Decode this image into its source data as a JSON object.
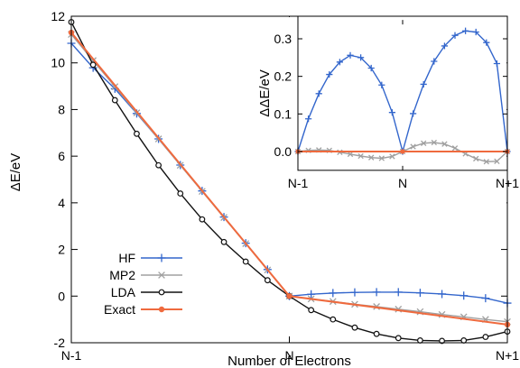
{
  "colors": {
    "HF": "#3366cc",
    "MP2": "#a0a0a0",
    "LDA": "#111111",
    "Exact": "#ef6a3e"
  },
  "chart_data": [
    {
      "type": "line",
      "title": "",
      "xlabel": "Number of Electrons",
      "ylabel": "ΔE/eV",
      "xlim": [
        0,
        2
      ],
      "ylim": [
        -2,
        12
      ],
      "x_ticks": [
        {
          "value": 0,
          "label": "N-1"
        },
        {
          "value": 1,
          "label": "N"
        },
        {
          "value": 2,
          "label": "N+1"
        }
      ],
      "y_ticks": [
        {
          "value": -2,
          "label": "-2"
        },
        {
          "value": 0,
          "label": "0"
        },
        {
          "value": 2,
          "label": "2"
        },
        {
          "value": 4,
          "label": "4"
        },
        {
          "value": 6,
          "label": "6"
        },
        {
          "value": 8,
          "label": "8"
        },
        {
          "value": 10,
          "label": "10"
        },
        {
          "value": 12,
          "label": "12"
        }
      ],
      "grid": false,
      "legend": {
        "position": "bottom-left"
      },
      "x": [
        0,
        0.1,
        0.2,
        0.3,
        0.4,
        0.5,
        0.6,
        0.7,
        0.8,
        0.9,
        1.0,
        1.1,
        1.2,
        1.3,
        1.4,
        1.5,
        1.6,
        1.7,
        1.8,
        1.9,
        2.0
      ],
      "series": [
        {
          "name": "HF",
          "marker": "plus",
          "values": [
            10.84,
            9.79,
            8.89,
            7.83,
            6.74,
            5.62,
            4.51,
            3.39,
            2.27,
            1.14,
            0.0,
            0.08,
            0.13,
            0.16,
            0.17,
            0.17,
            0.14,
            0.09,
            0.02,
            -0.09,
            -0.3
          ]
        },
        {
          "name": "MP2",
          "marker": "x",
          "values": [
            11.22,
            10.1,
            8.98,
            7.86,
            6.74,
            5.61,
            4.49,
            3.37,
            2.25,
            1.12,
            0.0,
            -0.12,
            -0.23,
            -0.35,
            -0.45,
            -0.56,
            -0.67,
            -0.79,
            -0.89,
            -1.0,
            -1.1
          ]
        },
        {
          "name": "LDA",
          "marker": "circle",
          "values": [
            11.75,
            9.92,
            8.4,
            6.96,
            5.61,
            4.4,
            3.29,
            2.32,
            1.48,
            0.68,
            0.0,
            -0.6,
            -1.0,
            -1.35,
            -1.62,
            -1.8,
            -1.9,
            -1.92,
            -1.9,
            -1.75,
            -1.52
          ]
        },
        {
          "name": "Exact",
          "marker": "dot",
          "values": [
            11.3,
            null,
            null,
            null,
            null,
            null,
            null,
            null,
            null,
            null,
            0.0,
            null,
            null,
            null,
            null,
            null,
            null,
            null,
            null,
            null,
            -1.22
          ]
        }
      ]
    },
    {
      "type": "line",
      "title": "",
      "xlabel": "",
      "ylabel": "ΔΔE/eV",
      "xlim": [
        0,
        2
      ],
      "ylim": [
        -0.05,
        0.35
      ],
      "x_ticks": [
        {
          "value": 0,
          "label": "N-1"
        },
        {
          "value": 1,
          "label": "N"
        },
        {
          "value": 2,
          "label": "N+1"
        }
      ],
      "y_ticks": [
        {
          "value": 0.0,
          "label": "0.0"
        },
        {
          "value": 0.1,
          "label": "0.1"
        },
        {
          "value": 0.2,
          "label": "0.2"
        },
        {
          "value": 0.3,
          "label": "0.3"
        }
      ],
      "grid": false,
      "x": [
        0,
        0.1,
        0.2,
        0.3,
        0.4,
        0.5,
        0.6,
        0.7,
        0.8,
        0.9,
        1.0,
        1.1,
        1.2,
        1.3,
        1.4,
        1.5,
        1.6,
        1.7,
        1.8,
        1.9,
        2.0
      ],
      "series": [
        {
          "name": "HF",
          "marker": "plus",
          "values": [
            0.0,
            0.087,
            0.154,
            0.205,
            0.238,
            0.256,
            0.25,
            0.222,
            0.177,
            0.104,
            0.0,
            0.101,
            0.179,
            0.24,
            0.281,
            0.309,
            0.321,
            0.318,
            0.29,
            0.234,
            0.0
          ]
        },
        {
          "name": "MP2",
          "marker": "x",
          "values": [
            0.0,
            0.003,
            0.004,
            0.003,
            -0.002,
            -0.007,
            -0.012,
            -0.016,
            -0.018,
            -0.013,
            0.0,
            0.013,
            0.022,
            0.024,
            0.02,
            0.009,
            -0.006,
            -0.019,
            -0.027,
            -0.026,
            0.0
          ]
        },
        {
          "name": "Exact",
          "marker": "dot",
          "values": [
            0.0,
            null,
            null,
            null,
            null,
            null,
            null,
            null,
            null,
            null,
            0.0,
            null,
            null,
            null,
            null,
            null,
            null,
            null,
            null,
            null,
            0.0
          ]
        }
      ]
    }
  ]
}
